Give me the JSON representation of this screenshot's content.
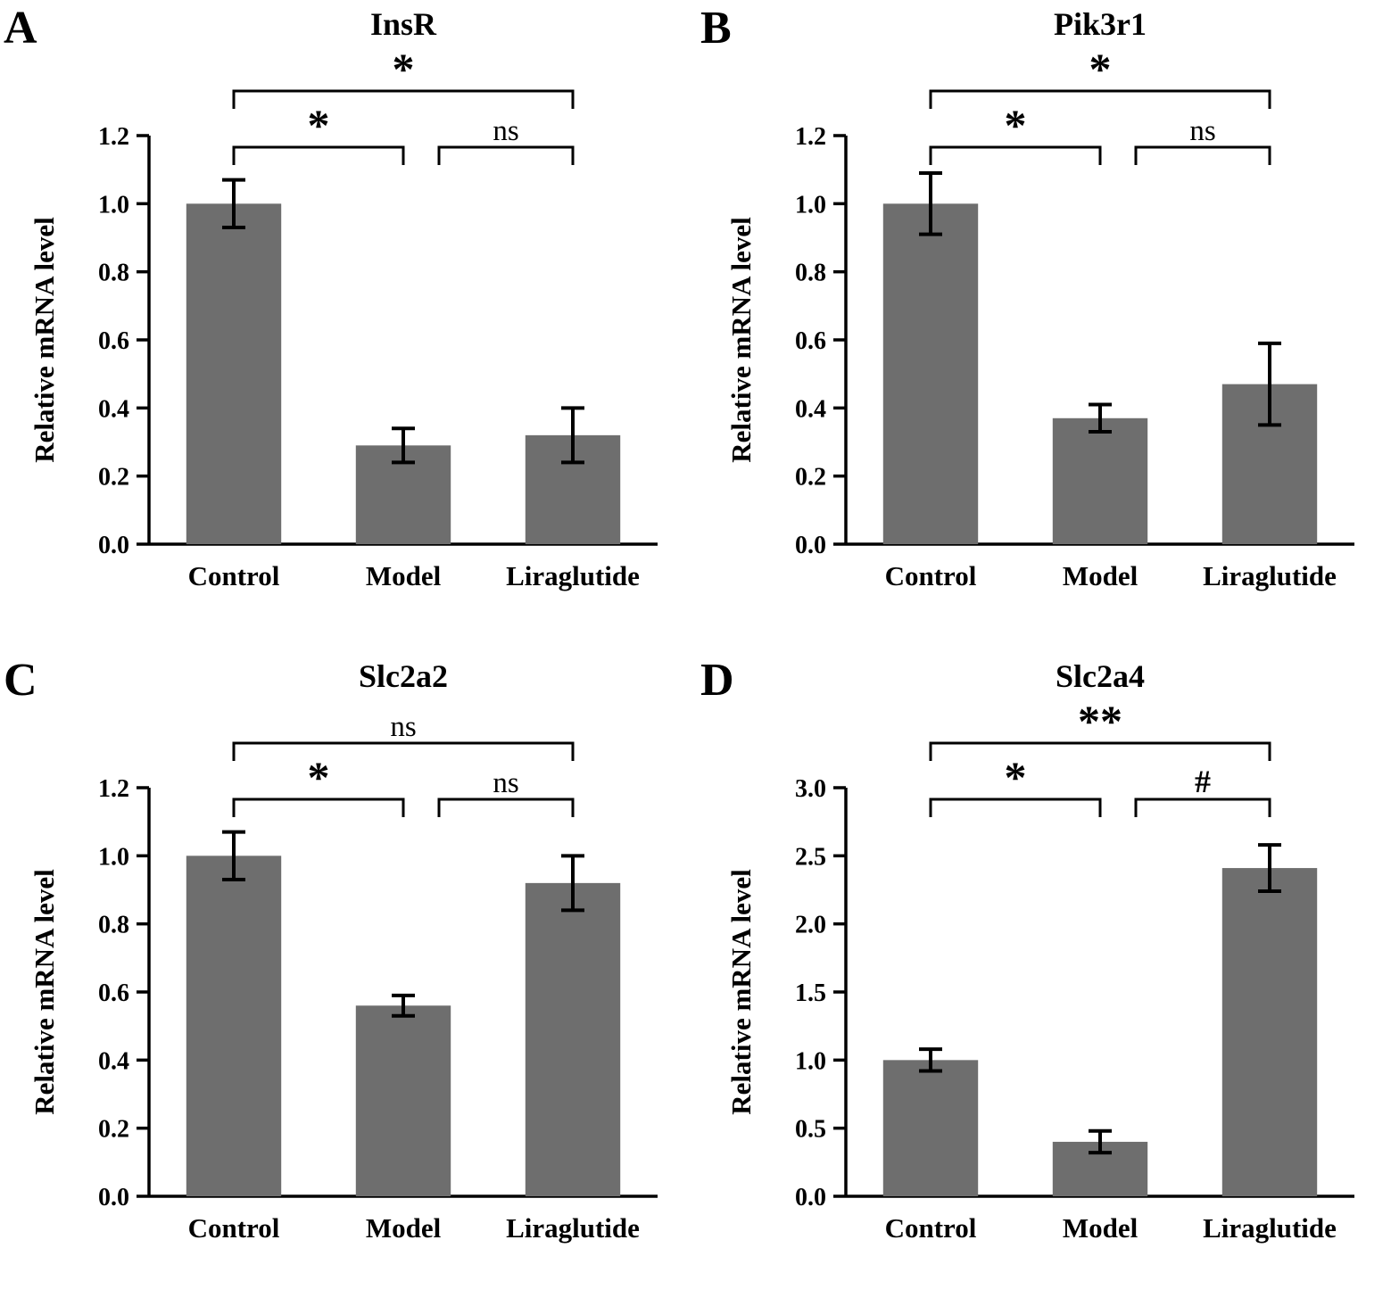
{
  "figure": {
    "bar_color": "#6e6e6e",
    "axis_color": "#000000",
    "background": "#ffffff"
  },
  "chart_data": [
    {
      "type": "bar",
      "panel": "A",
      "title": "InsR",
      "ylabel": "Relative mRNA level",
      "categories": [
        "Control",
        "Model",
        "Liraglutide"
      ],
      "values": [
        1.0,
        0.29,
        0.32
      ],
      "errors": [
        0.07,
        0.05,
        0.08
      ],
      "ylim": [
        0,
        1.2
      ],
      "ytick_step": 0.2,
      "ytick_decimals": 1,
      "grid": false,
      "significance": [
        {
          "from": "Control",
          "to": "Model",
          "label": "*",
          "level": 1
        },
        {
          "from": "Model",
          "to": "Liraglutide",
          "label": "ns",
          "level": 1
        },
        {
          "from": "Control",
          "to": "Liraglutide",
          "label": "*",
          "level": 2
        }
      ]
    },
    {
      "type": "bar",
      "panel": "B",
      "title": "Pik3r1",
      "ylabel": "Relative mRNA level",
      "categories": [
        "Control",
        "Model",
        "Liraglutide"
      ],
      "values": [
        1.0,
        0.37,
        0.47
      ],
      "errors": [
        0.09,
        0.04,
        0.12
      ],
      "ylim": [
        0,
        1.2
      ],
      "ytick_step": 0.2,
      "ytick_decimals": 1,
      "grid": false,
      "significance": [
        {
          "from": "Control",
          "to": "Model",
          "label": "*",
          "level": 1
        },
        {
          "from": "Model",
          "to": "Liraglutide",
          "label": "ns",
          "level": 1
        },
        {
          "from": "Control",
          "to": "Liraglutide",
          "label": "*",
          "level": 2
        }
      ]
    },
    {
      "type": "bar",
      "panel": "C",
      "title": "Slc2a2",
      "ylabel": "Relative mRNA level",
      "categories": [
        "Control",
        "Model",
        "Liraglutide"
      ],
      "values": [
        1.0,
        0.56,
        0.92
      ],
      "errors": [
        0.07,
        0.03,
        0.08
      ],
      "ylim": [
        0,
        1.2
      ],
      "ytick_step": 0.2,
      "ytick_decimals": 1,
      "grid": false,
      "significance": [
        {
          "from": "Control",
          "to": "Model",
          "label": "*",
          "level": 1
        },
        {
          "from": "Model",
          "to": "Liraglutide",
          "label": "ns",
          "level": 1
        },
        {
          "from": "Control",
          "to": "Liraglutide",
          "label": "ns",
          "level": 2
        }
      ]
    },
    {
      "type": "bar",
      "panel": "D",
      "title": "Slc2a4",
      "ylabel": "Relative mRNA level",
      "categories": [
        "Control",
        "Model",
        "Liraglutide"
      ],
      "values": [
        1.0,
        0.4,
        2.41
      ],
      "errors": [
        0.08,
        0.08,
        0.17
      ],
      "ylim": [
        0,
        3.0
      ],
      "ytick_step": 0.5,
      "ytick_decimals": 1,
      "grid": false,
      "significance": [
        {
          "from": "Control",
          "to": "Model",
          "label": "*",
          "level": 1
        },
        {
          "from": "Model",
          "to": "Liraglutide",
          "label": "#",
          "level": 1
        },
        {
          "from": "Control",
          "to": "Liraglutide",
          "label": "**",
          "level": 2
        }
      ]
    }
  ]
}
